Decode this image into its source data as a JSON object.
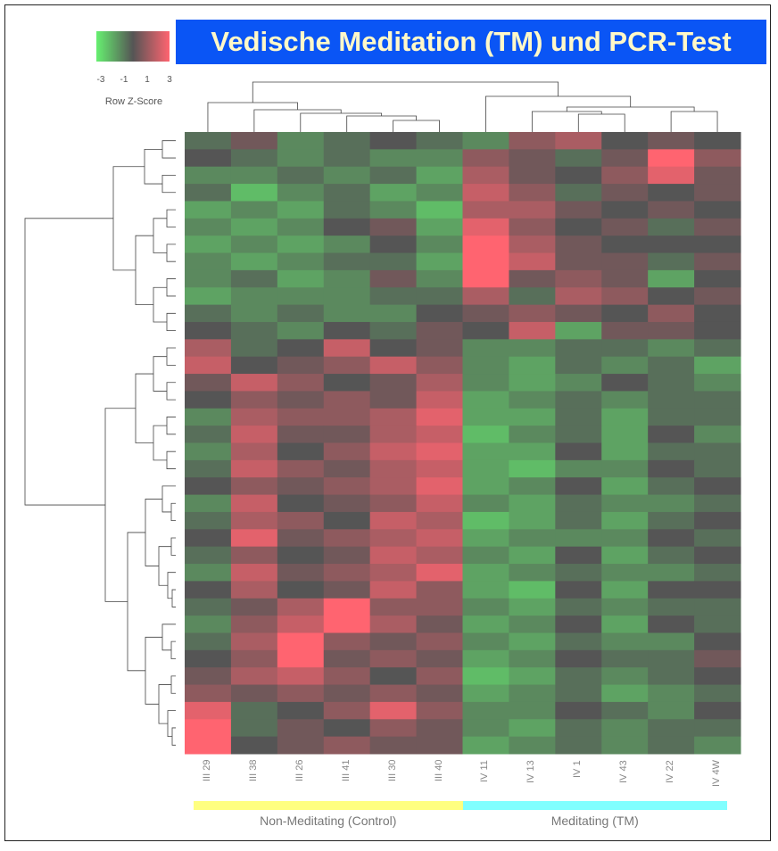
{
  "title": "Vedische Meditation (TM) und PCR-Test",
  "chart_data": {
    "type": "heatmap",
    "title": "Vedische Meditation (TM) und PCR-Test",
    "colorscale": {
      "title": "Row Z-Score",
      "ticks": [
        "-3",
        "-1",
        "1",
        "3"
      ],
      "range": [
        -3,
        3
      ],
      "low": "#66f070",
      "mid": "#555555",
      "high": "#ff6470"
    },
    "columns": [
      "III 29",
      "III 38",
      "III 26",
      "III 41",
      "III 30",
      "III 40",
      "IV 11",
      "IV 13",
      "IV 1",
      "IV 43",
      "IV 22",
      "IV 4W"
    ],
    "groups": [
      {
        "label": "Non-Meditating (Control)",
        "color": "#ffff80",
        "columns": 6
      },
      {
        "label": "Meditating (TM)",
        "color": "#80ffff",
        "columns": 6
      }
    ],
    "values": [
      [
        -0.5,
        0.5,
        -1,
        -0.5,
        0,
        -0.5,
        -1,
        1,
        1.5,
        0,
        0.5,
        0
      ],
      [
        0,
        -0.5,
        -1,
        -0.5,
        -1,
        -1,
        1,
        0.5,
        -0.5,
        0.5,
        3,
        1
      ],
      [
        -1,
        -1,
        -0.5,
        -1,
        -0.5,
        -1.5,
        1.5,
        0.5,
        0,
        1,
        2.5,
        0.5
      ],
      [
        -0.5,
        -2,
        -1,
        -0.5,
        -1.5,
        -1,
        2,
        1,
        -0.5,
        0.5,
        0,
        0.5
      ],
      [
        -1.5,
        -1,
        -1.5,
        -0.5,
        -1,
        -2,
        1.5,
        1.5,
        0.5,
        0,
        0.5,
        0
      ],
      [
        -1,
        -1.5,
        -1,
        0,
        0.5,
        -1.5,
        2.5,
        1,
        0,
        0.5,
        -0.5,
        0.5
      ],
      [
        -1.5,
        -1,
        -1.5,
        -1,
        0,
        -1,
        3,
        1.5,
        0.5,
        0,
        0,
        0
      ],
      [
        -1,
        -1.5,
        -1,
        -0.5,
        -0.5,
        -1.5,
        3,
        2,
        0.5,
        0.5,
        -0.5,
        0.5
      ],
      [
        -1,
        -0.5,
        -1.5,
        -1,
        0.5,
        -1,
        3,
        0.5,
        1,
        0.5,
        -1.5,
        0
      ],
      [
        -1.5,
        -1,
        -1,
        -1,
        -0.5,
        -0.5,
        1.5,
        -0.5,
        1.5,
        1,
        0,
        0.5
      ],
      [
        -0.5,
        -1,
        -0.5,
        -1,
        -1,
        0,
        0.5,
        1,
        0.5,
        0,
        1,
        0
      ],
      [
        0,
        -0.5,
        -1,
        0,
        -0.5,
        0.5,
        0,
        2,
        -1.5,
        0.5,
        0.5,
        0
      ],
      [
        1.5,
        -0.5,
        0,
        2,
        0,
        0.5,
        -1,
        -1,
        -0.5,
        -0.5,
        -1,
        -0.5
      ],
      [
        2,
        0,
        0.5,
        1,
        2,
        1,
        -1,
        -1.5,
        -0.5,
        -1,
        -0.5,
        -1.5
      ],
      [
        0.5,
        2,
        1,
        0,
        0.5,
        1.5,
        -1,
        -1.5,
        -1,
        0,
        -0.5,
        -1
      ],
      [
        0,
        1,
        0.5,
        1,
        0.5,
        2,
        -1.5,
        -1,
        -0.5,
        -1,
        -0.5,
        -0.5
      ],
      [
        -1,
        1.5,
        1,
        1,
        1.5,
        2.5,
        -1.5,
        -1.5,
        -0.5,
        -1.5,
        -0.5,
        -0.5
      ],
      [
        -0.5,
        2,
        0.5,
        0.5,
        1.5,
        2,
        -2,
        -1,
        -0.5,
        -1.5,
        0,
        -1
      ],
      [
        -1,
        1.5,
        0,
        1,
        2,
        2.5,
        -1.5,
        -1.5,
        0,
        -1.5,
        -0.5,
        -0.5
      ],
      [
        -0.5,
        2,
        1,
        0.5,
        1.5,
        2,
        -1.5,
        -2,
        -1,
        -1,
        0,
        -0.5
      ],
      [
        0,
        1,
        0.5,
        1,
        1.5,
        2.5,
        -1.5,
        -1,
        0,
        -1.5,
        -0.5,
        0
      ],
      [
        -1,
        2,
        0,
        0.5,
        1,
        2,
        -1,
        -1.5,
        -0.5,
        -1,
        -1,
        -0.5
      ],
      [
        -0.5,
        1.5,
        1,
        0,
        2,
        1.5,
        -2,
        -1.5,
        -0.5,
        -1.5,
        -0.5,
        0
      ],
      [
        0,
        2.5,
        0.5,
        1,
        1.5,
        2,
        -1.5,
        -1,
        -1,
        -1,
        0,
        -0.5
      ],
      [
        -0.5,
        1,
        0,
        0.5,
        2,
        1.5,
        -1,
        -1.5,
        0,
        -1.5,
        -0.5,
        0
      ],
      [
        -1,
        2,
        0.5,
        1,
        1.5,
        2.5,
        -1.5,
        -1,
        -0.5,
        -1,
        -1,
        -0.5
      ],
      [
        0,
        1.5,
        0,
        0.5,
        2,
        1,
        -1.5,
        -2,
        0,
        -1.5,
        0,
        0
      ],
      [
        -0.5,
        0.5,
        1.5,
        3,
        1,
        1,
        -1,
        -1.5,
        -0.5,
        -1,
        -0.5,
        -0.5
      ],
      [
        -1,
        1,
        2,
        3,
        1.5,
        0.5,
        -1.5,
        -1,
        0,
        -1.5,
        0,
        -0.5
      ],
      [
        -0.5,
        1.5,
        3,
        1,
        0.5,
        1,
        -1,
        -1.5,
        -0.5,
        -1,
        -1,
        0
      ],
      [
        0,
        1,
        3,
        0.5,
        1,
        0.5,
        -1.5,
        -1,
        0,
        -0.5,
        -0.5,
        0.5
      ],
      [
        0.5,
        1.5,
        2,
        1,
        0,
        1,
        -2,
        -1.5,
        -0.5,
        -1,
        -0.5,
        0
      ],
      [
        1,
        0.5,
        1,
        0.5,
        1,
        0.5,
        -1.5,
        -1,
        -0.5,
        -1.5,
        -1,
        -0.5
      ],
      [
        2.5,
        -0.5,
        0,
        1,
        2.5,
        1,
        -1,
        -1,
        0,
        -0.5,
        -1,
        0
      ],
      [
        3,
        -0.5,
        0.5,
        0,
        1,
        0.5,
        -1,
        -1.5,
        -0.5,
        -1,
        -0.5,
        -0.5
      ],
      [
        3,
        0,
        0.5,
        1,
        0.5,
        0.5,
        -1.5,
        -1,
        -0.5,
        -1,
        -0.5,
        -1
      ]
    ],
    "row_dendrogram": true,
    "column_dendrogram": true
  }
}
